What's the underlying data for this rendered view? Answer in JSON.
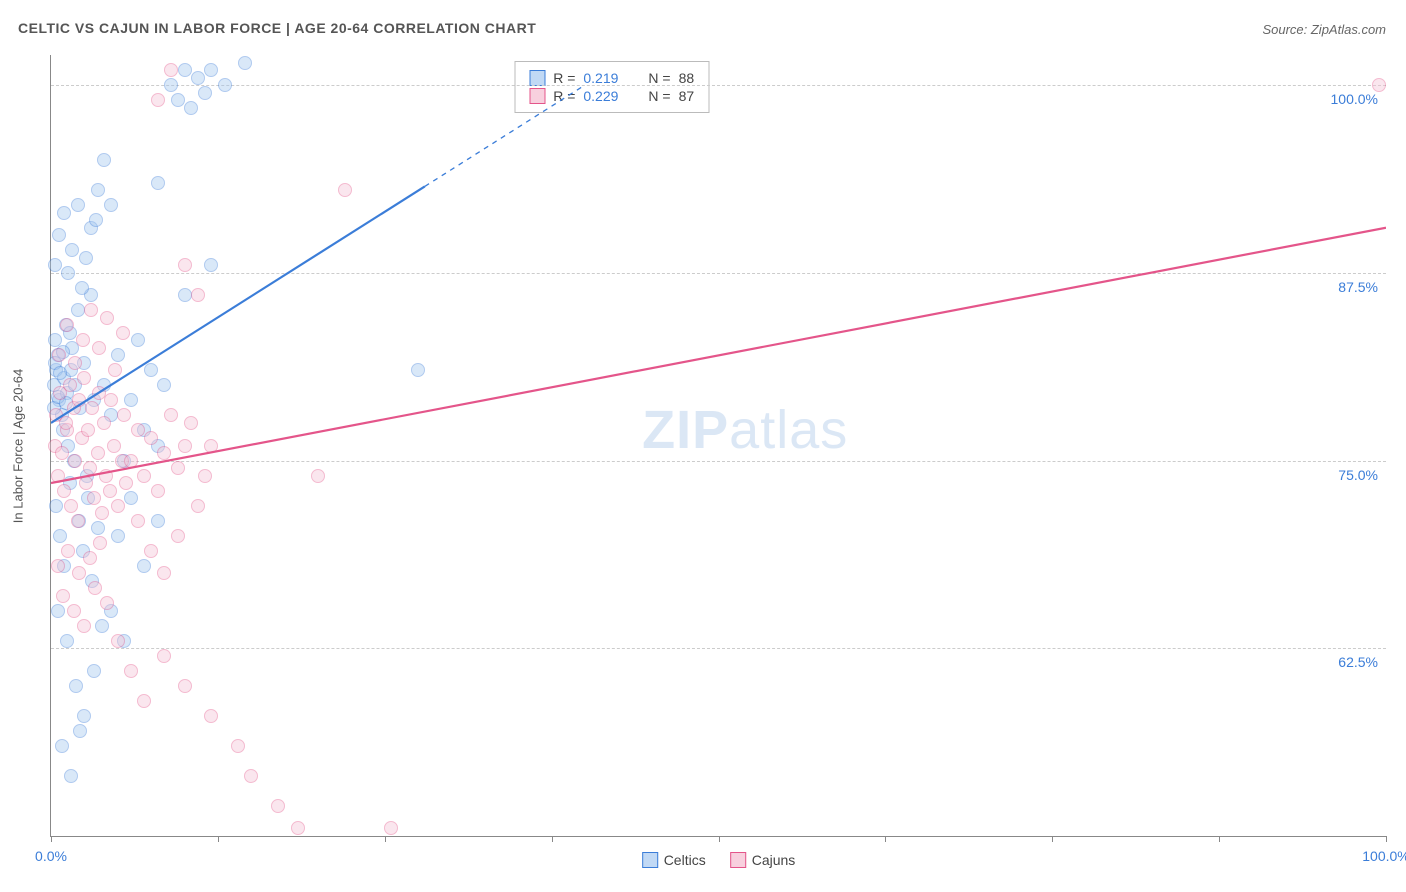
{
  "title": "CELTIC VS CAJUN IN LABOR FORCE | AGE 20-64 CORRELATION CHART",
  "source": "Source: ZipAtlas.com",
  "y_axis_title": "In Labor Force | Age 20-64",
  "watermark_a": "ZIP",
  "watermark_b": "atlas",
  "chart": {
    "type": "scatter",
    "xlim": [
      0,
      100
    ],
    "ylim": [
      50,
      102
    ],
    "x_ticks": [
      0,
      12.5,
      25,
      37.5,
      50,
      62.5,
      75,
      87.5,
      100
    ],
    "x_labels": {
      "0": "0.0%",
      "100": "100.0%"
    },
    "y_gridlines": [
      62.5,
      75,
      87.5,
      100
    ],
    "y_labels": {
      "62.5": "62.5%",
      "75": "75.0%",
      "87.5": "87.5%",
      "100": "100.0%"
    },
    "grid_color": "#cccccc",
    "axis_color": "#888888",
    "background_color": "#ffffff",
    "tick_color": "#3b7dd8",
    "marker_radius": 7,
    "marker_opacity": 0.4,
    "marker_stroke_width": 1.2,
    "series": [
      {
        "name": "Celtics",
        "fill": "#a3c7f0",
        "stroke": "#3b7dd8",
        "R": "0.219",
        "N": "88",
        "trend": {
          "x1": 0,
          "y1": 77.5,
          "x2": 40,
          "y2": 100,
          "width": 2.2,
          "dash_after_x": 28
        },
        "points": [
          [
            0.2,
            80
          ],
          [
            0.4,
            81
          ],
          [
            0.6,
            79
          ],
          [
            0.5,
            82
          ],
          [
            0.8,
            78
          ],
          [
            1.0,
            80.5
          ],
          [
            0.3,
            83
          ],
          [
            1.2,
            79.5
          ],
          [
            1.5,
            81
          ],
          [
            0.9,
            77
          ],
          [
            1.1,
            84
          ],
          [
            1.3,
            76
          ],
          [
            1.6,
            82.5
          ],
          [
            1.8,
            80
          ],
          [
            2.0,
            85
          ],
          [
            2.2,
            78.5
          ],
          [
            2.5,
            81.5
          ],
          [
            2.7,
            74
          ],
          [
            3.0,
            86
          ],
          [
            3.2,
            79
          ],
          [
            0.4,
            72
          ],
          [
            0.7,
            70
          ],
          [
            1.0,
            68
          ],
          [
            1.4,
            73.5
          ],
          [
            1.7,
            75
          ],
          [
            2.1,
            71
          ],
          [
            2.4,
            69
          ],
          [
            2.8,
            72.5
          ],
          [
            3.1,
            67
          ],
          [
            3.5,
            70.5
          ],
          [
            0.3,
            88
          ],
          [
            0.6,
            90
          ],
          [
            1.0,
            91.5
          ],
          [
            1.3,
            87.5
          ],
          [
            1.6,
            89
          ],
          [
            2.0,
            92
          ],
          [
            2.3,
            86.5
          ],
          [
            2.6,
            88.5
          ],
          [
            3.0,
            90.5
          ],
          [
            3.4,
            91
          ],
          [
            0.5,
            65
          ],
          [
            1.2,
            63
          ],
          [
            1.9,
            60
          ],
          [
            2.5,
            58
          ],
          [
            3.2,
            61
          ],
          [
            3.8,
            64
          ],
          [
            0.8,
            56
          ],
          [
            1.5,
            54
          ],
          [
            2.2,
            57
          ],
          [
            4.0,
            80
          ],
          [
            4.5,
            78
          ],
          [
            5.0,
            82
          ],
          [
            5.5,
            75
          ],
          [
            6.0,
            79
          ],
          [
            6.5,
            83
          ],
          [
            7.0,
            77
          ],
          [
            7.5,
            81
          ],
          [
            8.0,
            76
          ],
          [
            8.5,
            80
          ],
          [
            9.0,
            100
          ],
          [
            9.5,
            99
          ],
          [
            10.0,
            101
          ],
          [
            10.5,
            98.5
          ],
          [
            11.0,
            100.5
          ],
          [
            11.5,
            99.5
          ],
          [
            12.0,
            101
          ],
          [
            13.0,
            100
          ],
          [
            14.5,
            101.5
          ],
          [
            3.5,
            93
          ],
          [
            4.0,
            95
          ],
          [
            4.5,
            92
          ],
          [
            8.0,
            93.5
          ],
          [
            10.0,
            86
          ],
          [
            12.0,
            88
          ],
          [
            5.0,
            70
          ],
          [
            6.0,
            72.5
          ],
          [
            7.0,
            68
          ],
          [
            8.0,
            71
          ],
          [
            4.5,
            65
          ],
          [
            5.5,
            63
          ],
          [
            27.5,
            81
          ],
          [
            0.2,
            78.5
          ],
          [
            0.3,
            81.5
          ],
          [
            0.5,
            79.2
          ],
          [
            0.7,
            80.8
          ],
          [
            0.9,
            82.2
          ],
          [
            1.1,
            78.8
          ],
          [
            1.4,
            83.5
          ]
        ]
      },
      {
        "name": "Cajuns",
        "fill": "#f5c3d5",
        "stroke": "#e4558a",
        "R": "0.229",
        "N": "87",
        "trend": {
          "x1": 0,
          "y1": 73.5,
          "x2": 100,
          "y2": 90.5,
          "width": 2.2
        },
        "points": [
          [
            0.3,
            76
          ],
          [
            0.5,
            74
          ],
          [
            0.8,
            75.5
          ],
          [
            1.0,
            73
          ],
          [
            1.2,
            77
          ],
          [
            1.5,
            72
          ],
          [
            1.8,
            75
          ],
          [
            2.0,
            71
          ],
          [
            2.3,
            76.5
          ],
          [
            2.6,
            73.5
          ],
          [
            2.9,
            74.5
          ],
          [
            3.2,
            72.5
          ],
          [
            3.5,
            75.5
          ],
          [
            3.8,
            71.5
          ],
          [
            4.1,
            74
          ],
          [
            4.4,
            73
          ],
          [
            4.7,
            76
          ],
          [
            5.0,
            72
          ],
          [
            5.3,
            75
          ],
          [
            5.6,
            73.5
          ],
          [
            0.4,
            78
          ],
          [
            0.7,
            79.5
          ],
          [
            1.1,
            77.5
          ],
          [
            1.4,
            80
          ],
          [
            1.7,
            78.5
          ],
          [
            2.1,
            79
          ],
          [
            2.5,
            80.5
          ],
          [
            2.8,
            77
          ],
          [
            3.1,
            78.5
          ],
          [
            3.6,
            79.5
          ],
          [
            0.5,
            68
          ],
          [
            0.9,
            66
          ],
          [
            1.3,
            69
          ],
          [
            1.7,
            65
          ],
          [
            2.1,
            67.5
          ],
          [
            2.5,
            64
          ],
          [
            2.9,
            68.5
          ],
          [
            3.3,
            66.5
          ],
          [
            3.7,
            69.5
          ],
          [
            4.2,
            65.5
          ],
          [
            0.6,
            82
          ],
          [
            1.2,
            84
          ],
          [
            1.8,
            81.5
          ],
          [
            2.4,
            83
          ],
          [
            3.0,
            85
          ],
          [
            3.6,
            82.5
          ],
          [
            4.2,
            84.5
          ],
          [
            4.8,
            81
          ],
          [
            5.4,
            83.5
          ],
          [
            6.0,
            75
          ],
          [
            6.5,
            77
          ],
          [
            7.0,
            74
          ],
          [
            7.5,
            76.5
          ],
          [
            8.0,
            73
          ],
          [
            8.5,
            75.5
          ],
          [
            9.0,
            78
          ],
          [
            9.5,
            74.5
          ],
          [
            10.0,
            76
          ],
          [
            10.5,
            77.5
          ],
          [
            11.0,
            72
          ],
          [
            11.5,
            74
          ],
          [
            12.0,
            76
          ],
          [
            8.0,
            99
          ],
          [
            9.0,
            101
          ],
          [
            10.0,
            88
          ],
          [
            11.0,
            86
          ],
          [
            5.0,
            63
          ],
          [
            6.0,
            61
          ],
          [
            7.0,
            59
          ],
          [
            8.5,
            62
          ],
          [
            10.0,
            60
          ],
          [
            12.0,
            58
          ],
          [
            14.0,
            56
          ],
          [
            15.0,
            54
          ],
          [
            17.0,
            52
          ],
          [
            18.5,
            50.5
          ],
          [
            25.5,
            50.5
          ],
          [
            20.0,
            74
          ],
          [
            22.0,
            93
          ],
          [
            99.5,
            100
          ],
          [
            4.0,
            77.5
          ],
          [
            4.5,
            79
          ],
          [
            5.5,
            78
          ],
          [
            6.5,
            71
          ],
          [
            7.5,
            69
          ],
          [
            8.5,
            67.5
          ],
          [
            9.5,
            70
          ]
        ]
      }
    ]
  },
  "legend_title": {
    "R_label": "R =",
    "N_label": "N ="
  },
  "bottom_legend": [
    "Celtics",
    "Cajuns"
  ]
}
